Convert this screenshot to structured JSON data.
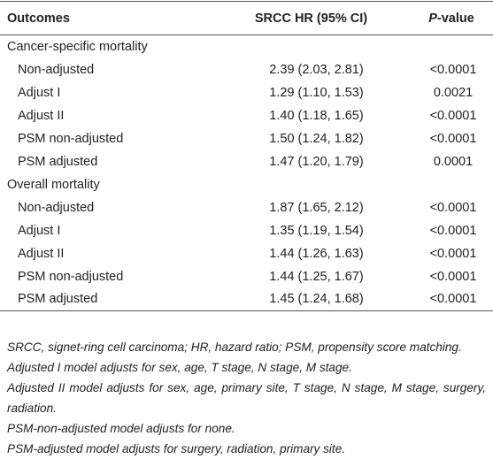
{
  "table": {
    "header": [
      "Outcomes",
      "SRCC HR (95% CI)",
      "P-value"
    ],
    "sections": [
      {
        "title": "Cancer-specific mortality",
        "rows": [
          [
            "Non-adjusted",
            "2.39 (2.03, 2.81)",
            "<0.0001"
          ],
          [
            "Adjust I",
            "1.29 (1.10, 1.53)",
            "0.0021"
          ],
          [
            "Adjust II",
            "1.40 (1.18, 1.65)",
            "<0.0001"
          ],
          [
            "PSM non-adjusted",
            "1.50 (1.24, 1.82)",
            "<0.0001"
          ],
          [
            "PSM adjusted",
            "1.47 (1.20, 1.79)",
            "0.0001"
          ]
        ]
      },
      {
        "title": "Overall mortality",
        "rows": [
          [
            "Non-adjusted",
            "1.87 (1.65, 2.12)",
            "<0.0001"
          ],
          [
            "Adjust I",
            "1.35 (1.19, 1.54)",
            "<0.0001"
          ],
          [
            "Adjust II",
            "1.44 (1.26, 1.63)",
            "<0.0001"
          ],
          [
            "PSM non-adjusted",
            "1.44 (1.25, 1.67)",
            "<0.0001"
          ],
          [
            "PSM adjusted",
            "1.45 (1.24, 1.68)",
            "<0.0001"
          ]
        ]
      }
    ]
  },
  "footnotes": [
    "SRCC, signet-ring cell carcinoma; HR, hazard ratio; PSM, propensity score matching.",
    "Adjusted I model adjusts for sex, age, T stage, N stage, M stage.",
    "Adjusted II model adjusts for sex, age, primary site, T stage, N stage, M stage, surgery, radiation.",
    "PSM-non-adjusted model adjusts for none.",
    "PSM-adjusted model adjusts for surgery, radiation, primary site."
  ]
}
